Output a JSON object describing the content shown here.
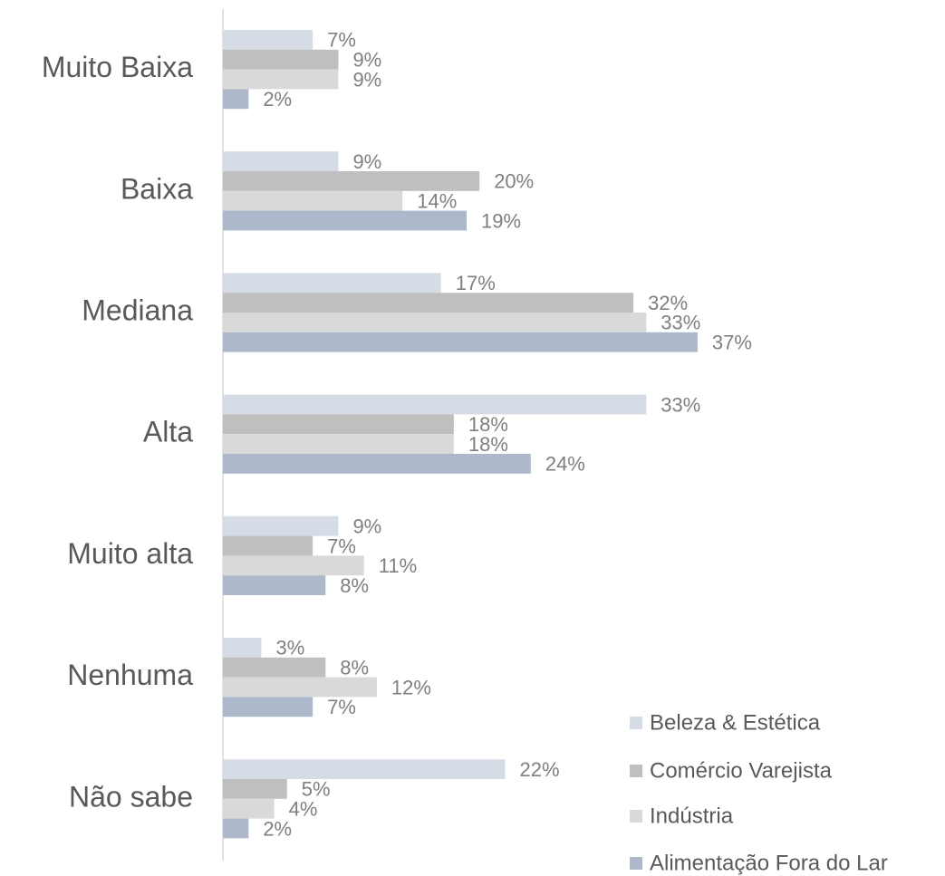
{
  "chart_data": {
    "type": "bar",
    "orientation": "horizontal",
    "categories": [
      "Muito Baixa",
      "Baixa",
      "Mediana",
      "Alta",
      "Muito alta",
      "Nenhuma",
      "Não sabe"
    ],
    "series": [
      {
        "name": "Beleza & Estética",
        "color": "#d6dce5",
        "values": [
          7,
          9,
          17,
          33,
          9,
          3,
          22
        ],
        "value_labels": [
          "7%",
          "9%",
          "17%",
          "33%",
          "9%",
          "3%",
          "22%"
        ]
      },
      {
        "name": "Comércio Varejista",
        "color": "#bfbfbf",
        "values": [
          9,
          20,
          32,
          18,
          7,
          8,
          5
        ],
        "value_labels": [
          "9%",
          "20%",
          "32%",
          "18%",
          "7%",
          "8%",
          "5%"
        ]
      },
      {
        "name": "Indústria",
        "color": "#d9d9d9",
        "values": [
          9,
          14,
          33,
          18,
          11,
          12,
          4
        ],
        "value_labels": [
          "9%",
          "14%",
          "33%",
          "18%",
          "11%",
          "12%",
          "4%"
        ]
      },
      {
        "name": "Alimentação Fora do Lar",
        "color": "#adb9ca",
        "values": [
          2,
          19,
          37,
          24,
          8,
          7,
          2
        ],
        "value_labels": [
          "2%",
          "19%",
          "37%",
          "24%",
          "8%",
          "7%",
          "2%"
        ]
      }
    ],
    "legend": "lower right"
  }
}
